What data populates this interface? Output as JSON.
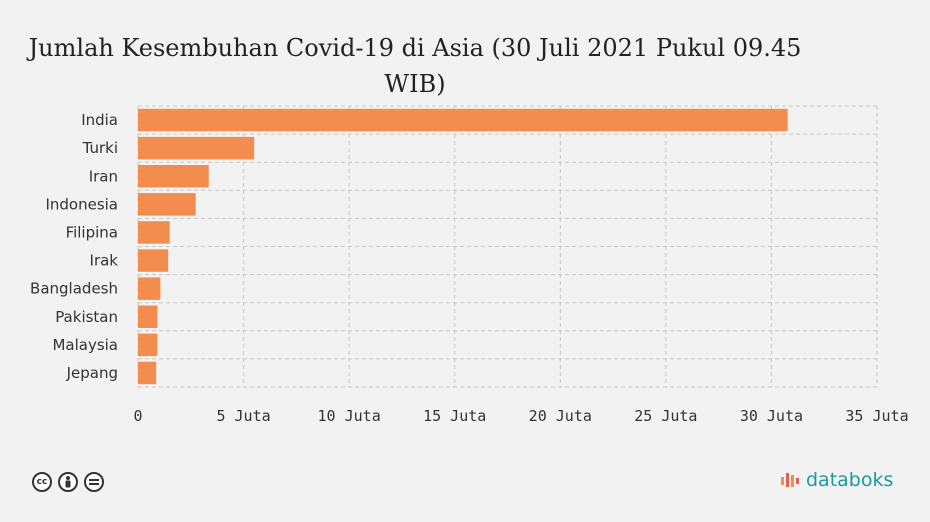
{
  "chart_data": {
    "type": "bar",
    "orientation": "horizontal",
    "title": "Jumlah Kesembuhan Covid-19 di Asia (30 Juli 2021 Pukul 09.45 WIB)",
    "categories": [
      "India",
      "Turki",
      "Iran",
      "Indonesia",
      "Filipina",
      "Irak",
      "Bangladesh",
      "Pakistan",
      "Malaysia",
      "Jepang"
    ],
    "values": [
      30770000,
      5500000,
      3350000,
      2730000,
      1500000,
      1430000,
      1060000,
      920000,
      920000,
      860000
    ],
    "xlim": [
      0,
      35000000
    ],
    "x_ticks": [
      0,
      5000000,
      10000000,
      15000000,
      20000000,
      25000000,
      30000000,
      35000000
    ],
    "x_tick_labels": [
      "0",
      "5 Juta",
      "10 Juta",
      "15 Juta",
      "20 Juta",
      "25 Juta",
      "30 Juta",
      "35 Juta"
    ],
    "bar_color": "#f28c4f",
    "grid": true
  },
  "footer": {
    "license_icons": [
      "cc-icon",
      "by-icon",
      "nd-icon"
    ],
    "brand": "databoks",
    "brand_color": "#1a9ba0"
  }
}
